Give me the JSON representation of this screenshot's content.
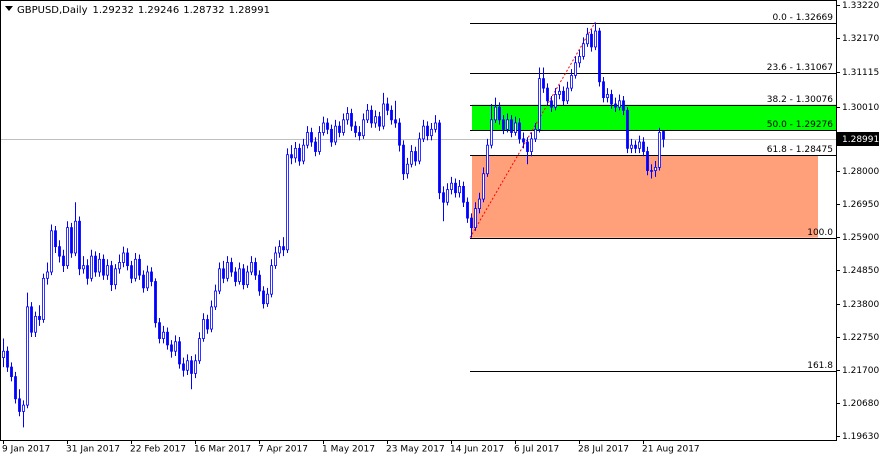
{
  "chart_data": {
    "type": "candlestick",
    "header": {
      "symbol": "GBPUSD,Daily",
      "open": "1.29232",
      "high": "1.29246",
      "low": "1.28732",
      "close": "1.28991"
    },
    "color": "#0000ff",
    "last_price": 1.28991,
    "ylim": [
      1.195,
      1.3338
    ],
    "yticks": [
      {
        "value": 1.3322,
        "label": "1.33220"
      },
      {
        "value": 1.3217,
        "label": "1.32170"
      },
      {
        "value": 1.31115,
        "label": "1.31115"
      },
      {
        "value": 1.3001,
        "label": "1.30010"
      },
      {
        "value": 1.28,
        "label": "1.28000"
      },
      {
        "value": 1.2695,
        "label": "1.26950"
      },
      {
        "value": 1.259,
        "label": "1.25900"
      },
      {
        "value": 1.2485,
        "label": "1.24850"
      },
      {
        "value": 1.238,
        "label": "1.23800"
      },
      {
        "value": 1.2275,
        "label": "1.22750"
      },
      {
        "value": 1.217,
        "label": "1.21700"
      },
      {
        "value": 1.2068,
        "label": "1.20680"
      },
      {
        "value": 1.1963,
        "label": "1.19630"
      }
    ],
    "fib_levels": [
      {
        "value": 1.32669,
        "label": "0.0 - 1.32669"
      },
      {
        "value": 1.31067,
        "label": "23.6 - 1.31067"
      },
      {
        "value": 1.30076,
        "label": "38.2 - 1.30076"
      },
      {
        "value": 1.29276,
        "label": "50.0 - 1.29276"
      },
      {
        "value": 1.28475,
        "label": "61.8 - 1.28475"
      },
      {
        "value": 1.25883,
        "label": "100.0"
      },
      {
        "value": 1.21689,
        "label": "161.8"
      }
    ],
    "fib_colors": {
      "upper_zone": "#00ff00",
      "lower_zone": "#ffa07a",
      "trend": "#ff0000"
    },
    "categories": [
      "9 Jan 2017",
      null,
      null,
      null,
      null,
      null,
      null,
      null,
      null,
      null,
      null,
      null,
      null,
      null,
      null,
      null,
      "31 Jan 2017",
      null,
      null,
      null,
      null,
      null,
      null,
      null,
      null,
      null,
      null,
      null,
      null,
      null,
      null,
      null,
      "22 Feb 2017",
      null,
      null,
      null,
      null,
      null,
      null,
      null,
      null,
      null,
      null,
      null,
      null,
      null,
      null,
      null,
      "16 Mar 2017",
      null,
      null,
      null,
      null,
      null,
      null,
      null,
      null,
      null,
      null,
      null,
      null,
      null,
      null,
      null,
      "7 Apr 2017",
      null,
      null,
      null,
      null,
      null,
      null,
      null,
      null,
      null,
      null,
      null,
      null,
      null,
      null,
      null,
      "1 May 2017",
      null,
      null,
      null,
      null,
      null,
      null,
      null,
      null,
      null,
      null,
      null,
      null,
      null,
      null,
      null,
      "23 May 2017",
      null,
      null,
      null,
      null,
      null,
      null,
      null,
      null,
      null,
      null,
      null,
      null,
      null,
      null,
      null,
      "14 Jun 2017",
      null,
      null,
      null,
      null,
      null,
      null,
      null,
      null,
      null,
      null,
      null,
      null,
      null,
      null,
      null,
      "6 Jul 2017",
      null,
      null,
      null,
      null,
      null,
      null,
      null,
      null,
      null,
      null,
      null,
      null,
      null,
      null,
      null,
      "28 Jul 2017",
      null,
      null,
      null,
      null,
      null,
      null,
      null,
      null,
      null,
      null,
      null,
      null,
      null,
      null,
      null,
      "21 Aug 2017",
      null,
      null,
      null,
      null,
      null
    ],
    "candles": [
      [
        1.221,
        1.227,
        1.218,
        1.223
      ],
      [
        1.223,
        1.2245,
        1.2165,
        1.218
      ],
      [
        1.218,
        1.2195,
        1.2135,
        1.215
      ],
      [
        1.215,
        1.2165,
        1.2065,
        1.208
      ],
      [
        1.208,
        1.211,
        1.2025,
        1.204
      ],
      [
        1.204,
        1.2075,
        1.199,
        1.206
      ],
      [
        1.206,
        1.2415,
        1.205,
        1.237
      ],
      [
        1.237,
        1.2385,
        1.2275,
        1.229
      ],
      [
        1.229,
        1.2355,
        1.2275,
        1.234
      ],
      [
        1.234,
        1.2375,
        1.231,
        1.233
      ],
      [
        1.233,
        1.2475,
        1.232,
        1.246
      ],
      [
        1.246,
        1.251,
        1.244,
        1.248
      ],
      [
        1.248,
        1.263,
        1.247,
        1.261
      ],
      [
        1.261,
        1.2625,
        1.254,
        1.256
      ],
      [
        1.256,
        1.258,
        1.251,
        1.253
      ],
      [
        1.253,
        1.255,
        1.248,
        1.25
      ],
      [
        1.25,
        1.264,
        1.249,
        1.262
      ],
      [
        1.262,
        1.2635,
        1.2525,
        1.254
      ],
      [
        1.254,
        1.27,
        1.253,
        1.264
      ],
      [
        1.264,
        1.2655,
        1.247,
        1.249
      ],
      [
        1.249,
        1.253,
        1.2475,
        1.25
      ],
      [
        1.25,
        1.252,
        1.244,
        1.246
      ],
      [
        1.246,
        1.255,
        1.245,
        1.253
      ],
      [
        1.253,
        1.2545,
        1.2465,
        1.248
      ],
      [
        1.248,
        1.254,
        1.2465,
        1.252
      ],
      [
        1.252,
        1.2535,
        1.2455,
        1.247
      ],
      [
        1.247,
        1.252,
        1.2455,
        1.25
      ],
      [
        1.25,
        1.2515,
        1.242,
        1.244
      ],
      [
        1.244,
        1.2505,
        1.2425,
        1.249
      ],
      [
        1.249,
        1.2535,
        1.2475,
        1.251
      ],
      [
        1.251,
        1.256,
        1.2495,
        1.254
      ],
      [
        1.254,
        1.2555,
        1.2485,
        1.25
      ],
      [
        1.25,
        1.2515,
        1.2445,
        1.246
      ],
      [
        1.246,
        1.254,
        1.245,
        1.252
      ],
      [
        1.252,
        1.2535,
        1.2455,
        1.247
      ],
      [
        1.247,
        1.2485,
        1.2415,
        1.243
      ],
      [
        1.243,
        1.25,
        1.242,
        1.248
      ],
      [
        1.248,
        1.2495,
        1.2435,
        1.245
      ],
      [
        1.245,
        1.246,
        1.2305,
        1.232
      ],
      [
        1.232,
        1.2335,
        1.2255,
        1.227
      ],
      [
        1.227,
        1.231,
        1.2255,
        1.229
      ],
      [
        1.229,
        1.2305,
        1.2235,
        1.225
      ],
      [
        1.225,
        1.2265,
        1.221,
        1.223
      ],
      [
        1.223,
        1.228,
        1.2215,
        1.226
      ],
      [
        1.226,
        1.2275,
        1.2175,
        1.219
      ],
      [
        1.219,
        1.221,
        1.215,
        1.217
      ],
      [
        1.217,
        1.222,
        1.2155,
        1.22
      ],
      [
        1.22,
        1.2215,
        1.211,
        1.216
      ],
      [
        1.216,
        1.222,
        1.2145,
        1.22
      ],
      [
        1.22,
        1.229,
        1.219,
        1.227
      ],
      [
        1.227,
        1.235,
        1.226,
        1.233
      ],
      [
        1.233,
        1.2345,
        1.2285,
        1.23
      ],
      [
        1.23,
        1.239,
        1.229,
        1.237
      ],
      [
        1.237,
        1.244,
        1.236,
        1.242
      ],
      [
        1.242,
        1.251,
        1.241,
        1.249
      ],
      [
        1.249,
        1.2515,
        1.2445,
        1.246
      ],
      [
        1.246,
        1.253,
        1.245,
        1.251
      ],
      [
        1.251,
        1.2525,
        1.2465,
        1.248
      ],
      [
        1.248,
        1.2495,
        1.2435,
        1.245
      ],
      [
        1.245,
        1.251,
        1.244,
        1.249
      ],
      [
        1.249,
        1.2505,
        1.2425,
        1.244
      ],
      [
        1.244,
        1.25,
        1.243,
        1.248
      ],
      [
        1.248,
        1.253,
        1.247,
        1.251
      ],
      [
        1.251,
        1.2525,
        1.2455,
        1.247
      ],
      [
        1.247,
        1.2485,
        1.2405,
        1.242
      ],
      [
        1.242,
        1.2435,
        1.2365,
        1.238
      ],
      [
        1.238,
        1.243,
        1.237,
        1.241
      ],
      [
        1.241,
        1.252,
        1.24,
        1.25
      ],
      [
        1.25,
        1.256,
        1.249,
        1.254
      ],
      [
        1.254,
        1.258,
        1.2525,
        1.256
      ],
      [
        1.256,
        1.259,
        1.253,
        1.255
      ],
      [
        1.255,
        1.287,
        1.254,
        1.285
      ],
      [
        1.285,
        1.288,
        1.282,
        1.284
      ],
      [
        1.284,
        1.289,
        1.2825,
        1.287
      ],
      [
        1.287,
        1.2885,
        1.2815,
        1.283
      ],
      [
        1.283,
        1.29,
        1.282,
        1.288
      ],
      [
        1.288,
        1.294,
        1.287,
        1.292
      ],
      [
        1.292,
        1.2935,
        1.2875,
        1.289
      ],
      [
        1.289,
        1.2905,
        1.2845,
        1.286
      ],
      [
        1.286,
        1.294,
        1.285,
        1.292
      ],
      [
        1.292,
        1.297,
        1.291,
        1.295
      ],
      [
        1.295,
        1.2965,
        1.2915,
        1.293
      ],
      [
        1.293,
        1.2945,
        1.2875,
        1.289
      ],
      [
        1.289,
        1.296,
        1.288,
        1.294
      ],
      [
        1.294,
        1.2955,
        1.2905,
        1.292
      ],
      [
        1.292,
        1.298,
        1.291,
        1.296
      ],
      [
        1.296,
        1.3,
        1.2945,
        1.298
      ],
      [
        1.298,
        1.2995,
        1.2925,
        1.294
      ],
      [
        1.294,
        1.2955,
        1.2905,
        1.292
      ],
      [
        1.292,
        1.294,
        1.2895,
        1.291
      ],
      [
        1.291,
        1.298,
        1.29,
        1.296
      ],
      [
        1.296,
        1.301,
        1.295,
        1.299
      ],
      [
        1.299,
        1.3005,
        1.2935,
        1.295
      ],
      [
        1.295,
        1.299,
        1.2935,
        1.297
      ],
      [
        1.297,
        1.2985,
        1.2925,
        1.294
      ],
      [
        1.294,
        1.3045,
        1.293,
        1.301
      ],
      [
        1.301,
        1.303,
        1.2975,
        1.299
      ],
      [
        1.299,
        1.3005,
        1.2945,
        1.296
      ],
      [
        1.296,
        1.302,
        1.2935,
        1.295
      ],
      [
        1.295,
        1.2965,
        1.286,
        1.288
      ],
      [
        1.288,
        1.2895,
        1.277,
        1.279
      ],
      [
        1.279,
        1.284,
        1.2775,
        1.282
      ],
      [
        1.282,
        1.288,
        1.281,
        1.286
      ],
      [
        1.286,
        1.2875,
        1.2815,
        1.283
      ],
      [
        1.283,
        1.292,
        1.282,
        1.29
      ],
      [
        1.29,
        1.296,
        1.289,
        1.294
      ],
      [
        1.294,
        1.2955,
        1.2895,
        1.291
      ],
      [
        1.291,
        1.295,
        1.2895,
        1.293
      ],
      [
        1.293,
        1.2975,
        1.292,
        1.295
      ],
      [
        1.295,
        1.296,
        1.271,
        1.273
      ],
      [
        1.273,
        1.275,
        1.264,
        1.27
      ],
      [
        1.27,
        1.276,
        1.269,
        1.274
      ],
      [
        1.274,
        1.278,
        1.2725,
        1.276
      ],
      [
        1.276,
        1.2775,
        1.2715,
        1.273
      ],
      [
        1.273,
        1.277,
        1.2715,
        1.275
      ],
      [
        1.275,
        1.2765,
        1.2685,
        1.27
      ],
      [
        1.27,
        1.2715,
        1.2635,
        1.265
      ],
      [
        1.265,
        1.2665,
        1.2588,
        1.262
      ],
      [
        1.262,
        1.27,
        1.261,
        1.268
      ],
      [
        1.268,
        1.273,
        1.2665,
        1.271
      ],
      [
        1.271,
        1.281,
        1.27,
        1.279
      ],
      [
        1.279,
        1.29,
        1.278,
        1.288
      ],
      [
        1.288,
        1.301,
        1.287,
        1.296
      ],
      [
        1.296,
        1.303,
        1.295,
        1.3
      ],
      [
        1.3,
        1.3015,
        1.2945,
        1.296
      ],
      [
        1.296,
        1.2975,
        1.2915,
        1.293
      ],
      [
        1.293,
        1.298,
        1.292,
        1.296
      ],
      [
        1.296,
        1.2975,
        1.2905,
        1.292
      ],
      [
        1.292,
        1.297,
        1.291,
        1.295
      ],
      [
        1.295,
        1.2965,
        1.2885,
        1.29
      ],
      [
        1.29,
        1.292,
        1.287,
        1.289
      ],
      [
        1.289,
        1.2905,
        1.282,
        1.286
      ],
      [
        1.286,
        1.292,
        1.2845,
        1.29
      ],
      [
        1.29,
        1.295,
        1.289,
        1.293
      ],
      [
        1.293,
        1.3125,
        1.292,
        1.309
      ],
      [
        1.309,
        1.3125,
        1.3045,
        1.306
      ],
      [
        1.306,
        1.3075,
        1.3005,
        1.302
      ],
      [
        1.302,
        1.3035,
        1.2985,
        1.3
      ],
      [
        1.3,
        1.306,
        1.299,
        1.304
      ],
      [
        1.304,
        1.307,
        1.3025,
        1.305
      ],
      [
        1.305,
        1.3065,
        1.3005,
        1.302
      ],
      [
        1.302,
        1.308,
        1.301,
        1.306
      ],
      [
        1.306,
        1.312,
        1.305,
        1.31
      ],
      [
        1.31,
        1.316,
        1.309,
        1.314
      ],
      [
        1.314,
        1.318,
        1.3125,
        1.316
      ],
      [
        1.316,
        1.322,
        1.315,
        1.32
      ],
      [
        1.32,
        1.325,
        1.319,
        1.323
      ],
      [
        1.323,
        1.3245,
        1.3175,
        1.319
      ],
      [
        1.319,
        1.3267,
        1.318,
        1.324
      ],
      [
        1.324,
        1.325,
        1.3065,
        1.308
      ],
      [
        1.308,
        1.3095,
        1.3015,
        1.303
      ],
      [
        1.303,
        1.306,
        1.3015,
        1.304
      ],
      [
        1.304,
        1.3055,
        1.2995,
        1.301
      ],
      [
        1.301,
        1.303,
        1.2985,
        1.3
      ],
      [
        1.3,
        1.304,
        1.299,
        1.302
      ],
      [
        1.302,
        1.3035,
        1.2975,
        1.299
      ],
      [
        1.299,
        1.3,
        1.2855,
        1.287
      ],
      [
        1.287,
        1.29,
        1.2855,
        1.288
      ],
      [
        1.288,
        1.2895,
        1.2855,
        1.287
      ],
      [
        1.287,
        1.291,
        1.2855,
        1.289
      ],
      [
        1.289,
        1.2905,
        1.2845,
        1.286
      ],
      [
        1.286,
        1.2875,
        1.2785,
        1.28
      ],
      [
        1.28,
        1.282,
        1.2775,
        1.28
      ],
      [
        1.28,
        1.283,
        1.278,
        1.281
      ],
      [
        1.281,
        1.2935,
        1.28,
        1.292
      ],
      [
        1.29232,
        1.29246,
        1.28732,
        1.28991
      ]
    ]
  }
}
